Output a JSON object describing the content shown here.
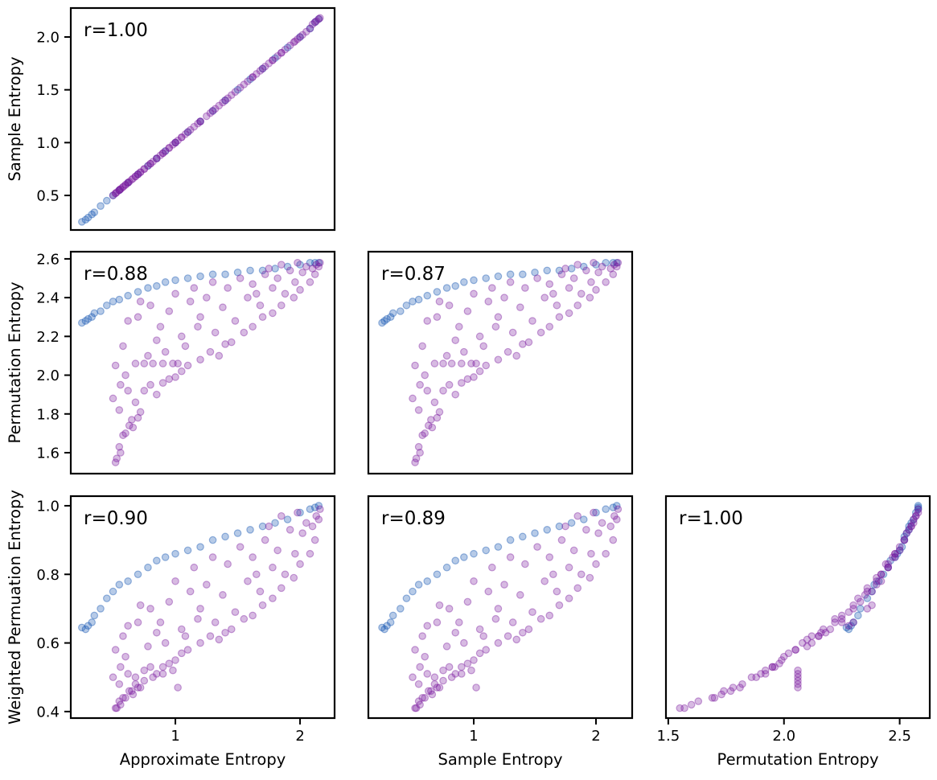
{
  "chart_data": {
    "type": "scatter",
    "layout": "pairplot-lower-triangle",
    "columns": [
      "Approximate Entropy",
      "Sample Entropy",
      "Permutation Entropy",
      "Weighted Permuation Entropy"
    ],
    "group_colors": {
      "blue": "#0d4fb0",
      "purple": "#7a1a9e"
    },
    "marker_alpha": 0.3,
    "panels": [
      {
        "row": 0,
        "col": 0,
        "x": 0,
        "y": 1,
        "r_label": "r=1.00",
        "ylabel": "Sample Entropy",
        "xlabel": "",
        "xlim": [
          0.161,
          2.277
        ],
        "ylim": [
          0.173,
          2.274
        ],
        "yticks": [
          "0.5",
          "1.0",
          "1.5",
          "2.0"
        ],
        "xticks": []
      },
      {
        "row": 1,
        "col": 0,
        "x": 0,
        "y": 2,
        "r_label": "r=0.88",
        "ylabel": "Permutation Entropy",
        "xlabel": "",
        "xlim": [
          0.161,
          2.277
        ],
        "ylim": [
          1.492,
          2.637
        ],
        "yticks": [
          "1.6",
          "1.8",
          "2.0",
          "2.2",
          "2.4",
          "2.6"
        ],
        "xticks": []
      },
      {
        "row": 1,
        "col": 1,
        "x": 1,
        "y": 2,
        "r_label": "r=0.87",
        "ylabel": "",
        "xlabel": "",
        "xlim": [
          0.138,
          2.296
        ],
        "ylim": [
          1.492,
          2.637
        ],
        "yticks": [],
        "xticks": []
      },
      {
        "row": 2,
        "col": 0,
        "x": 0,
        "y": 3,
        "r_label": "r=0.90",
        "ylabel": "Weighted Permuation Entropy",
        "xlabel": "Approximate Entropy",
        "xlim": [
          0.161,
          2.277
        ],
        "ylim": [
          0.381,
          1.028
        ],
        "yticks": [
          "0.4",
          "0.6",
          "0.8",
          "1.0"
        ],
        "xticks": [
          "1",
          "2"
        ]
      },
      {
        "row": 2,
        "col": 1,
        "x": 1,
        "y": 3,
        "r_label": "r=0.89",
        "ylabel": "",
        "xlabel": "Sample Entropy",
        "xlim": [
          0.138,
          2.296
        ],
        "ylim": [
          0.381,
          1.028
        ],
        "yticks": [],
        "xticks": [
          "1",
          "2"
        ]
      },
      {
        "row": 2,
        "col": 2,
        "x": 2,
        "y": 3,
        "r_label": "r=1.00",
        "ylabel": "",
        "xlabel": "Permutation Entropy",
        "xlim": [
          1.49,
          2.63
        ],
        "ylim": [
          0.381,
          1.028
        ],
        "yticks": [],
        "xticks": [
          "1.5",
          "2.0",
          "2.5"
        ]
      }
    ],
    "samples": {
      "blue": [
        [
          0.25,
          0.25,
          2.27,
          0.645
        ],
        [
          0.28,
          0.27,
          2.28,
          0.64
        ],
        [
          0.3,
          0.29,
          2.29,
          0.65
        ],
        [
          0.33,
          0.32,
          2.3,
          0.66
        ],
        [
          0.35,
          0.34,
          2.32,
          0.68
        ],
        [
          0.4,
          0.4,
          2.33,
          0.7
        ],
        [
          0.45,
          0.45,
          2.36,
          0.73
        ],
        [
          0.5,
          0.5,
          2.38,
          0.75
        ],
        [
          0.55,
          0.55,
          2.39,
          0.77
        ],
        [
          0.62,
          0.62,
          2.41,
          0.78
        ],
        [
          0.7,
          0.7,
          2.43,
          0.8
        ],
        [
          0.78,
          0.78,
          2.45,
          0.82
        ],
        [
          0.85,
          0.85,
          2.46,
          0.84
        ],
        [
          0.92,
          0.92,
          2.48,
          0.85
        ],
        [
          1.0,
          1.0,
          2.49,
          0.86
        ],
        [
          1.1,
          1.1,
          2.5,
          0.87
        ],
        [
          1.2,
          1.2,
          2.51,
          0.88
        ],
        [
          1.3,
          1.3,
          2.52,
          0.9
        ],
        [
          1.4,
          1.4,
          2.52,
          0.91
        ],
        [
          1.5,
          1.5,
          2.53,
          0.92
        ],
        [
          1.6,
          1.6,
          2.54,
          0.93
        ],
        [
          1.7,
          1.7,
          2.54,
          0.94
        ],
        [
          1.8,
          1.8,
          2.55,
          0.95
        ],
        [
          1.9,
          1.9,
          2.56,
          0.96
        ],
        [
          2.0,
          2.0,
          2.57,
          0.98
        ],
        [
          2.08,
          2.08,
          2.58,
          0.99
        ],
        [
          2.12,
          2.14,
          2.58,
          0.995
        ],
        [
          2.15,
          2.17,
          2.58,
          1.0
        ]
      ],
      "purple": [
        [
          0.52,
          0.52,
          1.55,
          0.41
        ],
        [
          0.53,
          0.53,
          1.57,
          0.41
        ],
        [
          0.55,
          0.55,
          1.63,
          0.43
        ],
        [
          0.56,
          0.56,
          1.6,
          0.42
        ],
        [
          0.58,
          0.58,
          1.69,
          0.44
        ],
        [
          0.6,
          0.6,
          1.7,
          0.44
        ],
        [
          0.63,
          0.63,
          1.74,
          0.46
        ],
        [
          0.66,
          0.66,
          1.73,
          0.45
        ],
        [
          0.7,
          0.7,
          1.78,
          0.47
        ],
        [
          0.72,
          0.72,
          1.81,
          0.47
        ],
        [
          0.5,
          0.5,
          1.88,
          0.5
        ],
        [
          0.55,
          0.55,
          1.82,
          0.48
        ],
        [
          0.62,
          0.62,
          1.92,
          0.51
        ],
        [
          0.75,
          0.75,
          1.92,
          0.52
        ],
        [
          0.8,
          0.8,
          1.95,
          0.53
        ],
        [
          0.85,
          0.85,
          1.9,
          0.51
        ],
        [
          0.9,
          0.9,
          1.96,
          0.53
        ],
        [
          0.95,
          0.95,
          1.98,
          0.54
        ],
        [
          1.0,
          1.0,
          1.99,
          0.55
        ],
        [
          1.05,
          1.05,
          2.02,
          0.57
        ],
        [
          1.1,
          1.1,
          2.05,
          0.58
        ],
        [
          1.2,
          1.2,
          2.08,
          0.6
        ],
        [
          1.28,
          1.28,
          2.12,
          0.62
        ],
        [
          1.35,
          1.35,
          2.1,
          0.61
        ],
        [
          1.45,
          1.45,
          2.17,
          0.64
        ],
        [
          1.55,
          1.55,
          2.22,
          0.67
        ],
        [
          1.62,
          1.62,
          2.25,
          0.68
        ],
        [
          1.7,
          1.7,
          2.3,
          0.71
        ],
        [
          1.78,
          1.78,
          2.32,
          0.73
        ],
        [
          1.85,
          1.85,
          2.36,
          0.76
        ],
        [
          1.95,
          1.95,
          2.4,
          0.79
        ],
        [
          2.0,
          2.0,
          2.44,
          0.83
        ],
        [
          2.08,
          2.08,
          2.48,
          0.86
        ],
        [
          2.12,
          2.14,
          2.52,
          0.9
        ],
        [
          2.15,
          2.17,
          2.56,
          0.96
        ],
        [
          2.16,
          2.18,
          2.58,
          0.99
        ],
        [
          0.68,
          0.68,
          2.06,
          0.48
        ],
        [
          0.75,
          0.75,
          2.06,
          0.49
        ],
        [
          0.82,
          0.82,
          2.06,
          0.5
        ],
        [
          0.9,
          0.9,
          2.06,
          0.51
        ],
        [
          0.98,
          0.98,
          2.06,
          0.52
        ],
        [
          1.02,
          1.02,
          2.06,
          0.47
        ],
        [
          0.58,
          0.58,
          2.15,
          0.62
        ],
        [
          0.62,
          0.62,
          2.28,
          0.65
        ],
        [
          0.7,
          0.7,
          2.3,
          0.66
        ],
        [
          0.72,
          0.72,
          2.38,
          0.71
        ],
        [
          0.8,
          0.8,
          2.36,
          0.7
        ],
        [
          0.88,
          0.88,
          2.25,
          0.66
        ],
        [
          0.95,
          0.95,
          2.33,
          0.72
        ],
        [
          1.0,
          1.0,
          2.42,
          0.78
        ],
        [
          1.05,
          1.05,
          2.2,
          0.64
        ],
        [
          1.12,
          1.12,
          2.38,
          0.75
        ],
        [
          1.15,
          1.15,
          2.45,
          0.82
        ],
        [
          1.2,
          1.2,
          2.3,
          0.7
        ],
        [
          1.25,
          1.25,
          2.4,
          0.77
        ],
        [
          1.3,
          1.3,
          2.48,
          0.85
        ],
        [
          1.38,
          1.38,
          2.35,
          0.74
        ],
        [
          1.42,
          1.42,
          2.45,
          0.83
        ],
        [
          1.48,
          1.48,
          2.28,
          0.69
        ],
        [
          1.52,
          1.52,
          2.5,
          0.88
        ],
        [
          1.58,
          1.58,
          2.4,
          0.78
        ],
        [
          1.62,
          1.62,
          2.47,
          0.85
        ],
        [
          1.68,
          1.68,
          2.36,
          0.75
        ],
        [
          1.72,
          1.72,
          2.52,
          0.9
        ],
        [
          1.78,
          1.78,
          2.45,
          0.82
        ],
        [
          1.82,
          1.82,
          2.5,
          0.87
        ],
        [
          1.88,
          1.88,
          2.42,
          0.8
        ],
        [
          1.92,
          1.92,
          2.54,
          0.93
        ],
        [
          1.96,
          1.96,
          2.48,
          0.86
        ],
        [
          2.02,
          2.02,
          2.53,
          0.92
        ],
        [
          2.05,
          2.05,
          2.56,
          0.95
        ],
        [
          2.1,
          2.12,
          2.55,
          0.94
        ],
        [
          2.13,
          2.15,
          2.57,
          0.97
        ],
        [
          0.6,
          0.6,
          2.0,
          0.56
        ],
        [
          0.68,
          0.68,
          1.86,
          0.5
        ],
        [
          0.78,
          0.78,
          2.1,
          0.59
        ],
        [
          0.85,
          0.85,
          2.18,
          0.63
        ],
        [
          0.92,
          0.92,
          2.12,
          0.6
        ],
        [
          1.08,
          1.08,
          2.15,
          0.62
        ],
        [
          1.18,
          1.18,
          2.25,
          0.67
        ],
        [
          1.32,
          1.32,
          2.22,
          0.66
        ],
        [
          1.65,
          1.65,
          2.42,
          0.8
        ],
        [
          1.75,
          1.75,
          2.55,
          0.94
        ],
        [
          1.85,
          1.85,
          2.57,
          0.97
        ],
        [
          1.98,
          1.98,
          2.58,
          0.98
        ],
        [
          0.65,
          0.65,
          1.77,
          0.46
        ],
        [
          1.4,
          1.4,
          2.16,
          0.63
        ],
        [
          0.52,
          0.52,
          2.05,
          0.58
        ],
        [
          0.56,
          0.56,
          1.95,
          0.53
        ]
      ]
    }
  }
}
